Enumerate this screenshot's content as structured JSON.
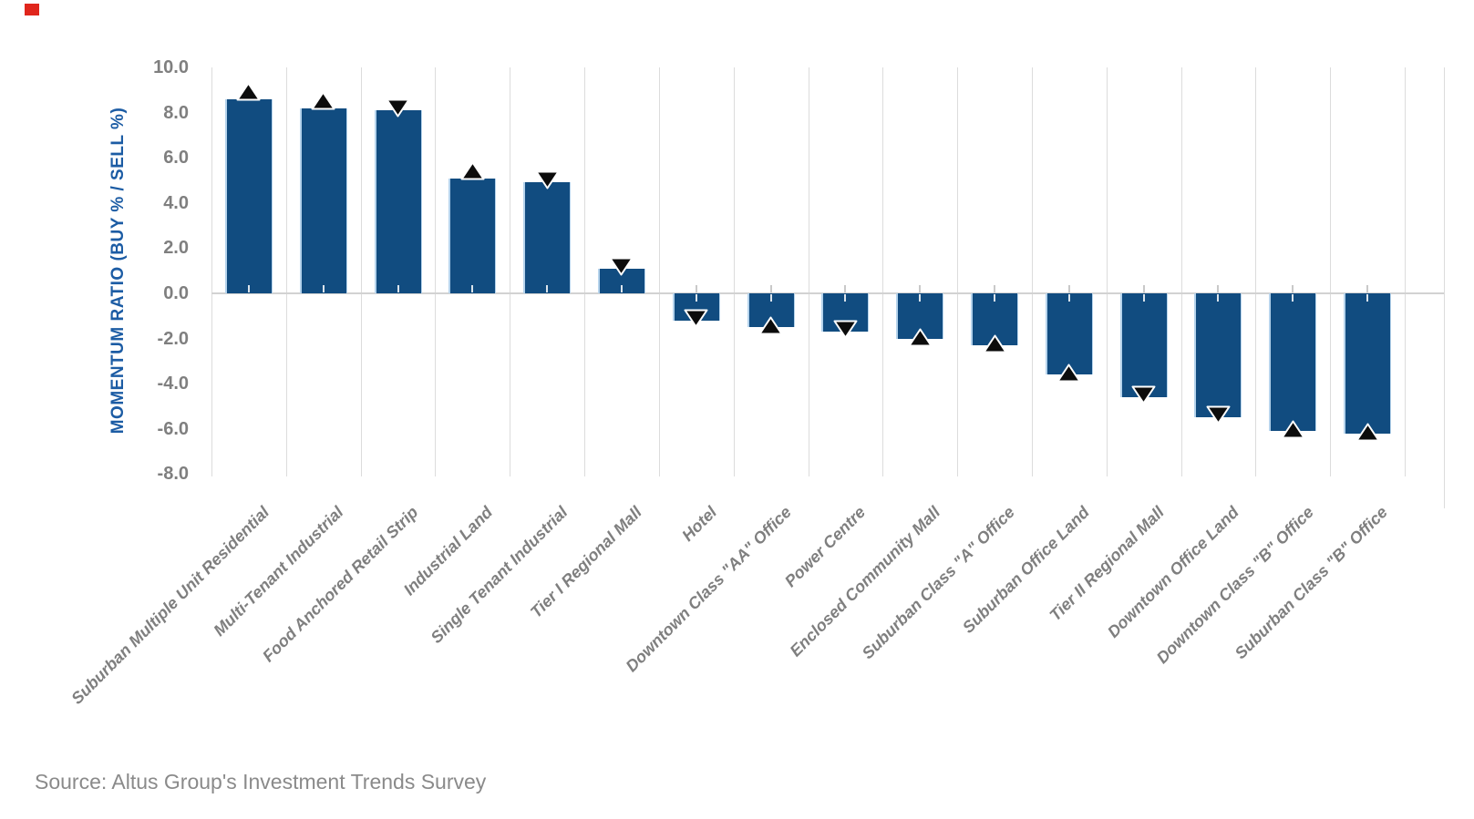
{
  "chart_data": {
    "type": "bar",
    "title": "",
    "xlabel": "",
    "ylabel": "MOMENTUM RATIO (BUY % / SELL %)",
    "ylim": [
      -8.0,
      10.0
    ],
    "yticks": [
      10,
      8,
      6,
      4,
      2,
      0,
      -2,
      -4,
      -6,
      -8
    ],
    "ytick_labels": [
      "10.0",
      "8.0",
      "6.0",
      "4.0",
      "2.0",
      "0.0",
      "-2.0",
      "-4.0",
      "-6.0",
      "-8.0"
    ],
    "grid": "vertical-category-gridlines-only",
    "legend": "none",
    "categories": [
      "Suburban Multiple Unit Residential",
      "Multi-Tenant Industrial",
      "Food Anchored Retail Strip",
      "Industrial Land",
      "Single Tenant Industrial",
      "Tier I Regional Mall",
      "Hotel",
      "Downtown Class \"AA\" Office",
      "Power Centre",
      "Enclosed Community Mall",
      "Suburban Class \"A\" Office",
      "Suburban Office Land",
      "Tier II Regional Mall",
      "Downtown Office Land",
      "Downtown Class \"B\" Office",
      "Suburban Class \"B\" Office"
    ],
    "values": [
      8.6,
      8.2,
      8.1,
      5.1,
      4.9,
      1.1,
      -1.2,
      -1.5,
      -1.7,
      -2.0,
      -2.3,
      -3.6,
      -4.6,
      -5.5,
      -6.1,
      -6.2
    ],
    "markers": [
      "up",
      "up",
      "down",
      "up",
      "down",
      "down",
      "down",
      "up",
      "down",
      "up",
      "up",
      "up",
      "down",
      "down",
      "up",
      "up"
    ],
    "marker_meaning": "trend triangle at end of each bar"
  },
  "colors": {
    "bar_fill": "#114C80",
    "bar_edge": "#B5D3EC",
    "gridline": "#DCDCDC",
    "zero_line": "#D2D2D2",
    "tick_label": "#7F7F7F",
    "x_label": "#7F7F7F",
    "y_title": "#1C5CA4",
    "source_text": "#8A8A8A",
    "marker_fill": "#0C0C0C",
    "marker_stroke": "#FFFFFF",
    "corner_square": "#E0261C"
  },
  "footer": {
    "source_text": "Source: Altus Group's Investment Trends Survey"
  }
}
